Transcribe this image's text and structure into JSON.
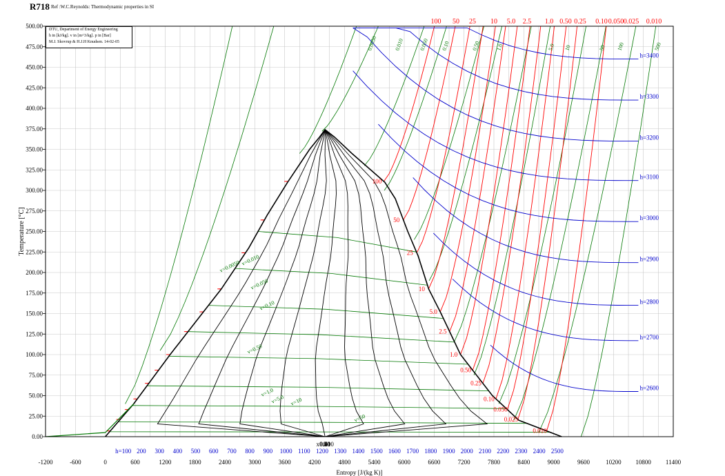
{
  "header": {
    "title": "R718",
    "subtitle": "Ref :W.C.Reynolds: Thermodynamic properties in SI"
  },
  "info_box": [
    "DTU, Department of Energy Engineering",
    "h in [kJ/kg]. v in [m^3/kg]. p in [Bar]",
    "M.J. Skovrup & H.J.H Knudsen. 14-02-05"
  ],
  "chart_data": {
    "type": "line",
    "title": "R718",
    "subtitle": "Ref :W.C.Reynolds: Thermodynamic properties in SI",
    "xlabel": "Entropy [J/(kg K)]",
    "ylabel": "Temperature [°C]",
    "xlim": [
      -1200,
      11400
    ],
    "ylim": [
      0,
      500
    ],
    "grid": true,
    "x_ticks": [
      "-1200",
      "-600",
      "0",
      "600",
      "1200",
      "1800",
      "2400",
      "3000",
      "3600",
      "4200",
      "4800",
      "5400",
      "6000",
      "6600",
      "7200",
      "7800",
      "8400",
      "9000",
      "9600",
      "10200",
      "10800",
      "11400"
    ],
    "y_ticks": [
      "0.00",
      "25.00",
      "50.00",
      "75.00",
      "100.00",
      "125.00",
      "150.00",
      "175.00",
      "200.00",
      "225.00",
      "250.00",
      "275.00",
      "300.00",
      "325.00",
      "350.00",
      "375.00",
      "400.00",
      "425.00",
      "450.00",
      "475.00",
      "500.00"
    ],
    "colors": {
      "saturation": "#000000",
      "quality": "#000000",
      "isobar": "#ff0000",
      "isenthalpic": "#0000cc",
      "isochore": "#007700",
      "grid": "#c8c8c8"
    },
    "saturation_dome": [
      [
        0,
        0.01
      ],
      [
        570,
        40
      ],
      [
        1300,
        100
      ],
      [
        2330,
        180
      ],
      [
        2880,
        230
      ],
      [
        3250,
        270
      ],
      [
        3660,
        310
      ],
      [
        4100,
        350
      ],
      [
        4300,
        365
      ],
      [
        4410,
        374
      ],
      [
        4600,
        365
      ],
      [
        4950,
        345
      ],
      [
        5610,
        310
      ],
      [
        5820,
        290
      ],
      [
        6070,
        250
      ],
      [
        6280,
        220
      ],
      [
        6490,
        180
      ],
      [
        6740,
        150
      ],
      [
        7130,
        100
      ],
      [
        7770,
        50
      ],
      [
        8300,
        20
      ],
      [
        9160,
        0.01
      ]
    ],
    "quality_labels": [
      "x=0.10",
      "0.20",
      "0.30",
      "0.40",
      "0.50",
      "0.60",
      "0.70",
      "0.80",
      "0.90"
    ],
    "quality_lines": [
      0.1,
      0.2,
      0.3,
      0.4,
      0.5,
      0.6,
      0.7,
      0.8,
      0.9
    ],
    "enthalpy_labels": [
      "h=100",
      "200",
      "300",
      "400",
      "500",
      "600",
      "700",
      "800",
      "900",
      "1000",
      "1100",
      "1200",
      "1300",
      "1400",
      "1500",
      "1600",
      "1700",
      "1800",
      "1900",
      "2000",
      "2100",
      "2200",
      "2300",
      "2400",
      "2500"
    ],
    "enthalpy_right_labels": [
      "h=2600",
      "h=2700",
      "h=2800",
      "h=2900",
      "h=3000",
      "h=3100",
      "h=3200",
      "h=3300",
      "h=3400"
    ],
    "enthalpy_right_values": [
      2600,
      2700,
      2800,
      2900,
      3000,
      3100,
      3200,
      3300,
      3400
    ],
    "pressure_top_labels": [
      "100",
      "50",
      "25",
      "10",
      "5.0",
      "2.5",
      "1.0",
      "0.50",
      "0.25",
      "0.10",
      "0.050",
      "0.025",
      "0.010"
    ],
    "pressure_dome_labels": [
      "100",
      "50",
      "25",
      "10",
      "5.0",
      "2.5",
      "1.0",
      "0.50",
      "0.25",
      "0.10",
      "0.050",
      "0.025",
      "0.010"
    ],
    "isobars": [
      {
        "p": 100,
        "tsat": 311
      },
      {
        "p": 50,
        "tsat": 264
      },
      {
        "p": 25,
        "tsat": 224
      },
      {
        "p": 10,
        "tsat": 180
      },
      {
        "p": 5.0,
        "tsat": 152
      },
      {
        "p": 2.5,
        "tsat": 128
      },
      {
        "p": 1.0,
        "tsat": 100
      },
      {
        "p": 0.5,
        "tsat": 81
      },
      {
        "p": 0.25,
        "tsat": 65
      },
      {
        "p": 0.1,
        "tsat": 46
      },
      {
        "p": 0.05,
        "tsat": 33
      },
      {
        "p": 0.025,
        "tsat": 21
      },
      {
        "p": 0.01,
        "tsat": 7
      }
    ],
    "volume_top_labels": [
      "0.0050",
      "0.010",
      "0.050",
      "0.10",
      "0.50",
      "1.0",
      "5.0",
      "10",
      "50",
      "100",
      "500"
    ],
    "volume_inside_labels": [
      "v=0.0050",
      "v=0.010",
      "v=0.050",
      "v=0.10",
      "v=0.50",
      "v=1.0",
      "v=5.0",
      "v=10",
      "v=50"
    ]
  }
}
